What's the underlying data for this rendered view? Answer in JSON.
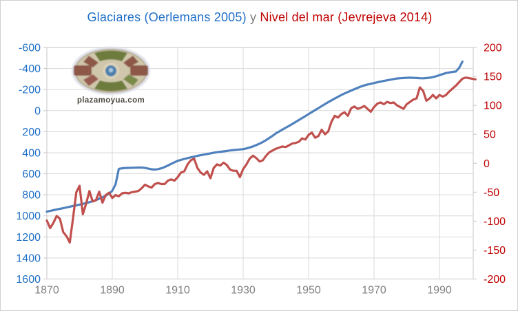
{
  "window": {
    "background": "#ffffff",
    "border_color": "#cfcfcf"
  },
  "title": {
    "part1": "Glaciares (Oerlemans 2005)",
    "separator": " y ",
    "part2": "Nivel del mar (Jevrejeva 2014)",
    "part1_color": "#1f6fc6",
    "separator_color": "#7f7f7f",
    "part2_color": "#c00000"
  },
  "logo": {
    "text": "plazamoyua.com",
    "text_color": "#4e4b42"
  },
  "chart_data": {
    "type": "line",
    "title": "Glaciares (Oerlemans 2005) y Nivel del mar (Jevrejeva 2014)",
    "grid": true,
    "legend_position": "none",
    "x_axis": {
      "ticks": [
        1870,
        1890,
        1910,
        1930,
        1950,
        1970,
        1990
      ],
      "range": [
        1870,
        2000
      ],
      "label_color": "#7f7f7f"
    },
    "y_axis_left": {
      "ticks": [
        -600,
        -400,
        -200,
        0,
        200,
        400,
        600,
        800,
        1000,
        1200,
        1400,
        1600
      ],
      "range_top_to_bottom": [
        -600,
        1600
      ],
      "inverted": true,
      "label_color": "#1f6fc6",
      "series_name": "Glaciares (Oerlemans 2005)"
    },
    "y_axis_right": {
      "ticks": [
        200,
        150,
        100,
        50,
        0,
        -50,
        -100,
        -150,
        -200
      ],
      "range_top_to_bottom": [
        200,
        -200
      ],
      "label_color": "#c00000",
      "series_name": "Nivel del mar (Jevrejeva 2014)"
    },
    "grid_color": "#d9d9d9",
    "border_color": "#c6c6c6",
    "series": [
      {
        "name": "Glaciares (Oerlemans 2005)",
        "axis": "left",
        "color": "#4f81bd",
        "points": [
          [
            1870,
            960
          ],
          [
            1871,
            953
          ],
          [
            1872,
            946
          ],
          [
            1873,
            939
          ],
          [
            1874,
            933
          ],
          [
            1875,
            927
          ],
          [
            1876,
            920
          ],
          [
            1877,
            913
          ],
          [
            1878,
            906
          ],
          [
            1879,
            900
          ],
          [
            1880,
            893
          ],
          [
            1881,
            886
          ],
          [
            1882,
            878
          ],
          [
            1883,
            870
          ],
          [
            1884,
            861
          ],
          [
            1885,
            850
          ],
          [
            1886,
            838
          ],
          [
            1887,
            824
          ],
          [
            1888,
            808
          ],
          [
            1889,
            788
          ],
          [
            1890,
            762
          ],
          [
            1891,
            700
          ],
          [
            1892,
            553
          ],
          [
            1893,
            548
          ],
          [
            1894,
            545
          ],
          [
            1895,
            544
          ],
          [
            1896,
            543
          ],
          [
            1897,
            542
          ],
          [
            1898,
            541
          ],
          [
            1899,
            541
          ],
          [
            1900,
            545
          ],
          [
            1901,
            551
          ],
          [
            1902,
            557
          ],
          [
            1903,
            560
          ],
          [
            1904,
            556
          ],
          [
            1905,
            548
          ],
          [
            1906,
            536
          ],
          [
            1907,
            521
          ],
          [
            1908,
            506
          ],
          [
            1909,
            491
          ],
          [
            1910,
            477
          ],
          [
            1911,
            468
          ],
          [
            1912,
            459
          ],
          [
            1913,
            451
          ],
          [
            1914,
            444
          ],
          [
            1915,
            437
          ],
          [
            1916,
            430
          ],
          [
            1917,
            424
          ],
          [
            1918,
            418
          ],
          [
            1919,
            412
          ],
          [
            1920,
            406
          ],
          [
            1921,
            400
          ],
          [
            1922,
            395
          ],
          [
            1923,
            391
          ],
          [
            1924,
            387
          ],
          [
            1925,
            383
          ],
          [
            1926,
            379
          ],
          [
            1927,
            375
          ],
          [
            1928,
            372
          ],
          [
            1929,
            369
          ],
          [
            1930,
            366
          ],
          [
            1931,
            359
          ],
          [
            1932,
            350
          ],
          [
            1933,
            340
          ],
          [
            1934,
            328
          ],
          [
            1935,
            314
          ],
          [
            1936,
            298
          ],
          [
            1937,
            280
          ],
          [
            1938,
            260
          ],
          [
            1939,
            239
          ],
          [
            1940,
            216
          ],
          [
            1941,
            198
          ],
          [
            1942,
            180
          ],
          [
            1943,
            162
          ],
          [
            1944,
            145
          ],
          [
            1945,
            127
          ],
          [
            1946,
            109
          ],
          [
            1947,
            90
          ],
          [
            1948,
            71
          ],
          [
            1949,
            52
          ],
          [
            1950,
            33
          ],
          [
            1951,
            14
          ],
          [
            1952,
            -5
          ],
          [
            1953,
            -24
          ],
          [
            1954,
            -43
          ],
          [
            1955,
            -62
          ],
          [
            1956,
            -80
          ],
          [
            1957,
            -98
          ],
          [
            1958,
            -115
          ],
          [
            1959,
            -132
          ],
          [
            1960,
            -148
          ],
          [
            1961,
            -163
          ],
          [
            1962,
            -177
          ],
          [
            1963,
            -191
          ],
          [
            1964,
            -204
          ],
          [
            1965,
            -217
          ],
          [
            1966,
            -229
          ],
          [
            1967,
            -239
          ],
          [
            1968,
            -248
          ],
          [
            1969,
            -255
          ],
          [
            1970,
            -262
          ],
          [
            1971,
            -269
          ],
          [
            1972,
            -276
          ],
          [
            1973,
            -282
          ],
          [
            1974,
            -288
          ],
          [
            1975,
            -294
          ],
          [
            1976,
            -300
          ],
          [
            1977,
            -305
          ],
          [
            1978,
            -308
          ],
          [
            1979,
            -310
          ],
          [
            1980,
            -312
          ],
          [
            1981,
            -313
          ],
          [
            1982,
            -312
          ],
          [
            1983,
            -310
          ],
          [
            1984,
            -308
          ],
          [
            1985,
            -307
          ],
          [
            1986,
            -309
          ],
          [
            1987,
            -313
          ],
          [
            1988,
            -319
          ],
          [
            1989,
            -327
          ],
          [
            1990,
            -337
          ],
          [
            1991,
            -347
          ],
          [
            1992,
            -357
          ],
          [
            1993,
            -363
          ],
          [
            1994,
            -368
          ],
          [
            1995,
            -372
          ],
          [
            1996,
            -405
          ],
          [
            1997,
            -465
          ]
        ]
      },
      {
        "name": "Nivel del mar (Jevrejeva 2014)",
        "axis": "right",
        "color": "#c0504d",
        "points": [
          [
            1870,
            -99
          ],
          [
            1871,
            -112
          ],
          [
            1872,
            -103
          ],
          [
            1873,
            -91
          ],
          [
            1874,
            -96
          ],
          [
            1875,
            -119
          ],
          [
            1876,
            -126
          ],
          [
            1877,
            -137
          ],
          [
            1878,
            -95
          ],
          [
            1879,
            -50
          ],
          [
            1880,
            -39
          ],
          [
            1881,
            -88
          ],
          [
            1882,
            -70
          ],
          [
            1883,
            -48
          ],
          [
            1884,
            -66
          ],
          [
            1885,
            -64
          ],
          [
            1886,
            -49
          ],
          [
            1887,
            -68
          ],
          [
            1888,
            -55
          ],
          [
            1889,
            -51
          ],
          [
            1890,
            -60
          ],
          [
            1891,
            -55
          ],
          [
            1892,
            -57
          ],
          [
            1893,
            -52
          ],
          [
            1894,
            -51
          ],
          [
            1895,
            -52
          ],
          [
            1896,
            -50
          ],
          [
            1897,
            -49
          ],
          [
            1898,
            -48
          ],
          [
            1899,
            -43
          ],
          [
            1900,
            -37
          ],
          [
            1901,
            -40
          ],
          [
            1902,
            -42
          ],
          [
            1903,
            -36
          ],
          [
            1904,
            -34
          ],
          [
            1905,
            -36
          ],
          [
            1906,
            -36
          ],
          [
            1907,
            -30
          ],
          [
            1908,
            -28
          ],
          [
            1909,
            -30
          ],
          [
            1910,
            -24
          ],
          [
            1911,
            -16
          ],
          [
            1912,
            -14
          ],
          [
            1913,
            -2
          ],
          [
            1914,
            5
          ],
          [
            1915,
            8
          ],
          [
            1916,
            -8
          ],
          [
            1917,
            -16
          ],
          [
            1918,
            -20
          ],
          [
            1919,
            -14
          ],
          [
            1920,
            -26
          ],
          [
            1921,
            -8
          ],
          [
            1922,
            -2
          ],
          [
            1923,
            -4
          ],
          [
            1924,
            1
          ],
          [
            1925,
            -3
          ],
          [
            1926,
            -11
          ],
          [
            1927,
            -13
          ],
          [
            1928,
            -13
          ],
          [
            1929,
            -24
          ],
          [
            1930,
            -10
          ],
          [
            1931,
            -2
          ],
          [
            1932,
            8
          ],
          [
            1933,
            13
          ],
          [
            1934,
            9
          ],
          [
            1935,
            3
          ],
          [
            1936,
            5
          ],
          [
            1937,
            13
          ],
          [
            1938,
            19
          ],
          [
            1939,
            22
          ],
          [
            1940,
            25
          ],
          [
            1941,
            27
          ],
          [
            1942,
            29
          ],
          [
            1943,
            28
          ],
          [
            1944,
            31
          ],
          [
            1945,
            34
          ],
          [
            1946,
            35
          ],
          [
            1947,
            37
          ],
          [
            1948,
            43
          ],
          [
            1949,
            41
          ],
          [
            1950,
            49
          ],
          [
            1951,
            53
          ],
          [
            1952,
            44
          ],
          [
            1953,
            47
          ],
          [
            1954,
            58
          ],
          [
            1955,
            50
          ],
          [
            1956,
            55
          ],
          [
            1957,
            72
          ],
          [
            1958,
            82
          ],
          [
            1959,
            79
          ],
          [
            1960,
            85
          ],
          [
            1961,
            88
          ],
          [
            1962,
            82
          ],
          [
            1963,
            95
          ],
          [
            1964,
            98
          ],
          [
            1965,
            94
          ],
          [
            1966,
            96
          ],
          [
            1967,
            99
          ],
          [
            1968,
            94
          ],
          [
            1969,
            89
          ],
          [
            1970,
            97
          ],
          [
            1971,
            103
          ],
          [
            1972,
            105
          ],
          [
            1973,
            102
          ],
          [
            1974,
            106
          ],
          [
            1975,
            104
          ],
          [
            1976,
            105
          ],
          [
            1977,
            100
          ],
          [
            1978,
            97
          ],
          [
            1979,
            94
          ],
          [
            1980,
            102
          ],
          [
            1981,
            106
          ],
          [
            1982,
            110
          ],
          [
            1983,
            112
          ],
          [
            1984,
            131
          ],
          [
            1985,
            125
          ],
          [
            1986,
            108
          ],
          [
            1987,
            112
          ],
          [
            1988,
            118
          ],
          [
            1989,
            112
          ],
          [
            1990,
            118
          ],
          [
            1991,
            115
          ],
          [
            1992,
            118
          ],
          [
            1993,
            124
          ],
          [
            1994,
            129
          ],
          [
            1995,
            134
          ],
          [
            1996,
            140
          ],
          [
            1997,
            146
          ],
          [
            1998,
            148
          ],
          [
            1999,
            147
          ],
          [
            2000,
            146
          ],
          [
            2001,
            145
          ]
        ]
      }
    ]
  }
}
